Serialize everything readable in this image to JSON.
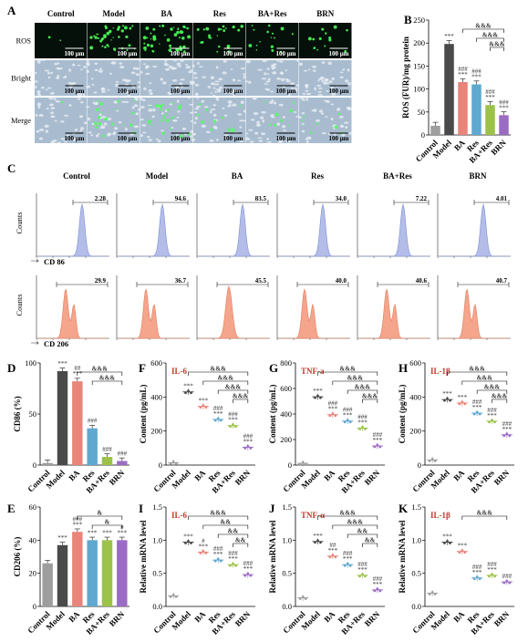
{
  "groups": [
    "Control",
    "Model",
    "BA",
    "Res",
    "BA+Res",
    "BRN"
  ],
  "colors": {
    "Control": "#9e9e9e",
    "Model": "#4a4a4a",
    "BA": "#e8847a",
    "Res": "#5fa8cf",
    "BA+Res": "#9cc24a",
    "BRN": "#9b6cc4",
    "blue_peak": "#b3bde8",
    "red_peak": "#f4a58c",
    "sig_blue": "#2c4a8a",
    "label_red": "#c0392b"
  },
  "panelA": {
    "label": "A",
    "row_labels": [
      "ROS",
      "Bright",
      "Merge"
    ],
    "scale": "100 μm"
  },
  "panelC": {
    "label": "C",
    "ylabel": "Counts",
    "row1_xlabel": "CD 86",
    "row2_xlabel": "CD 206",
    "cd86_values": [
      "2.28",
      "94.6",
      "83.5",
      "34.0",
      "7.22",
      "4.01"
    ],
    "cd206_values": [
      "29.9",
      "36.7",
      "45.5",
      "40.0",
      "40.6",
      "40.7"
    ]
  },
  "chart_data": [
    {
      "panel": "B",
      "type": "bar",
      "categories": [
        "Control",
        "Model",
        "BA",
        "Res",
        "BA+Res",
        "BRN"
      ],
      "values": [
        20,
        198,
        115,
        110,
        65,
        43
      ],
      "ylabel": "ROS (FUR)/mg protein",
      "ylim": [
        0,
        250
      ],
      "yticks": [
        "0",
        "50",
        "100",
        "150",
        "200",
        "250"
      ],
      "annotations": [
        [
          "",
          ""
        ],
        [
          "***",
          ""
        ],
        [
          "###",
          "***"
        ],
        [
          "###",
          "***"
        ],
        [
          "###",
          "***"
        ],
        [
          "###",
          "***"
        ]
      ],
      "brackets": [
        "&&&",
        "&&&",
        "&&&"
      ]
    },
    {
      "panel": "D",
      "type": "bar",
      "categories": [
        "Control",
        "Model",
        "BA",
        "Res",
        "BA+Res",
        "BRN"
      ],
      "values": [
        2,
        92,
        82,
        36,
        8,
        4
      ],
      "ylabel": "CD86 (%)",
      "ylim": [
        0,
        100
      ],
      "yticks": [
        "0",
        "50",
        "100"
      ],
      "annotations": [
        [
          "",
          ""
        ],
        [
          "***",
          ""
        ],
        [
          "##",
          "***"
        ],
        [
          "###",
          ""
        ],
        [
          "###",
          ""
        ],
        [
          "###",
          ""
        ]
      ],
      "brackets": [
        "&&&",
        "&&&"
      ]
    },
    {
      "panel": "E",
      "type": "bar",
      "categories": [
        "Control",
        "Model",
        "BA",
        "Res",
        "BA+Res",
        "BRN"
      ],
      "values": [
        26,
        37,
        45,
        40,
        40,
        40
      ],
      "ylabel": "CD206 (%)",
      "ylim": [
        0,
        60
      ],
      "yticks": [
        "0",
        "20",
        "40",
        "60"
      ],
      "annotations": [
        [
          "",
          ""
        ],
        [
          "***",
          ""
        ],
        [
          "###",
          "***"
        ],
        [
          "***",
          ""
        ],
        [
          "***",
          ""
        ],
        [
          "#",
          "***"
        ]
      ],
      "brackets": [
        "&",
        "&"
      ]
    },
    {
      "panel": "F",
      "type": "scatter",
      "title": "IL-6",
      "categories": [
        "Control",
        "Model",
        "BA",
        "Res",
        "BA+Res",
        "BRN"
      ],
      "values": [
        14,
        430,
        345,
        268,
        232,
        105
      ],
      "ylabel": "Content (pg/mL)",
      "ylim": [
        0,
        600
      ],
      "yticks": [
        "0",
        "200",
        "400",
        "600"
      ],
      "annotations": [
        [
          "",
          ""
        ],
        [
          "***",
          ""
        ],
        [
          "***",
          ""
        ],
        [
          "###",
          "***"
        ],
        [
          "###",
          "***"
        ],
        [
          "###",
          "***"
        ]
      ],
      "brackets": [
        "&&&",
        "&&&",
        "&&&",
        "&&&"
      ]
    },
    {
      "panel": "G",
      "type": "scatter",
      "title": "TNF-a",
      "categories": [
        "Control",
        "Model",
        "BA",
        "Res",
        "BA+Res",
        "BRN"
      ],
      "values": [
        14,
        535,
        395,
        345,
        290,
        150
      ],
      "ylabel": "Content (pg/mL)",
      "ylim": [
        0,
        800
      ],
      "yticks": [
        "0",
        "200",
        "400",
        "600",
        "800"
      ],
      "annotations": [
        [
          "",
          ""
        ],
        [
          "***",
          ""
        ],
        [
          "###",
          "***"
        ],
        [
          "###",
          "***"
        ],
        [
          "###",
          "***"
        ],
        [
          "###",
          "***"
        ]
      ],
      "brackets": [
        "&&&",
        "&&&",
        "&&&",
        "&&&"
      ]
    },
    {
      "panel": "H",
      "type": "scatter",
      "title": "IL-1β",
      "categories": [
        "Control",
        "Model",
        "BA",
        "Res",
        "BA+Res",
        "BRN"
      ],
      "values": [
        30,
        385,
        365,
        305,
        258,
        178
      ],
      "ylabel": "Content (pg/mL)",
      "ylim": [
        0,
        600
      ],
      "yticks": [
        "0",
        "200",
        "400",
        "600"
      ],
      "annotations": [
        [
          "",
          ""
        ],
        [
          "***",
          ""
        ],
        [
          "***",
          ""
        ],
        [
          "###",
          "***"
        ],
        [
          "###",
          "***"
        ],
        [
          "###",
          "***"
        ]
      ],
      "brackets": [
        "&&&",
        "&&&",
        "&&&",
        "&&&"
      ]
    },
    {
      "panel": "I",
      "type": "scatter",
      "title": "IL-6",
      "categories": [
        "Control",
        "Model",
        "BA",
        "Res",
        "BA+Res",
        "BRN"
      ],
      "values": [
        0.16,
        0.97,
        0.82,
        0.7,
        0.63,
        0.48
      ],
      "ylabel": "Relative mRNA level",
      "ylim": [
        0,
        1.5
      ],
      "yticks": [
        "0.0",
        "0.5",
        "1.0",
        "1.5"
      ],
      "annotations": [
        [
          "",
          ""
        ],
        [
          "***",
          ""
        ],
        [
          "#",
          "***"
        ],
        [
          "###",
          "***"
        ],
        [
          "###",
          "***"
        ],
        [
          "###",
          "***"
        ]
      ],
      "brackets": [
        "&&&",
        "&&",
        "&&",
        "&&"
      ]
    },
    {
      "panel": "J",
      "type": "scatter",
      "title": "TNF-α",
      "categories": [
        "Control",
        "Model",
        "BA",
        "Res",
        "BA+Res",
        "BRN"
      ],
      "values": [
        0.13,
        0.98,
        0.76,
        0.63,
        0.47,
        0.25
      ],
      "ylabel": "Relative mRNA level",
      "ylim": [
        0,
        1.5
      ],
      "yticks": [
        "0.0",
        "0.5",
        "1.0",
        "1.5"
      ],
      "annotations": [
        [
          "",
          ""
        ],
        [
          "***",
          ""
        ],
        [
          "##",
          "***"
        ],
        [
          "###",
          "***"
        ],
        [
          "###",
          "***"
        ],
        [
          "###",
          "***"
        ]
      ],
      "brackets": [
        "&&&",
        "&&&",
        "&&",
        "&&"
      ]
    },
    {
      "panel": "K",
      "type": "scatter",
      "title": "IL-1β",
      "categories": [
        "Control",
        "Model",
        "BA",
        "Res",
        "BA+Res",
        "BRN"
      ],
      "values": [
        0.2,
        0.97,
        0.83,
        0.43,
        0.47,
        0.37
      ],
      "ylabel": "Relative mRNA level",
      "ylim": [
        0,
        1.5
      ],
      "yticks": [
        "0.0",
        "0.5",
        "1.0",
        "1.5"
      ],
      "annotations": [
        [
          "",
          ""
        ],
        [
          "***",
          ""
        ],
        [
          "***",
          ""
        ],
        [
          "###",
          "***"
        ],
        [
          "###",
          "***"
        ],
        [
          "###",
          ""
        ]
      ],
      "brackets": [
        "&&&"
      ]
    }
  ]
}
